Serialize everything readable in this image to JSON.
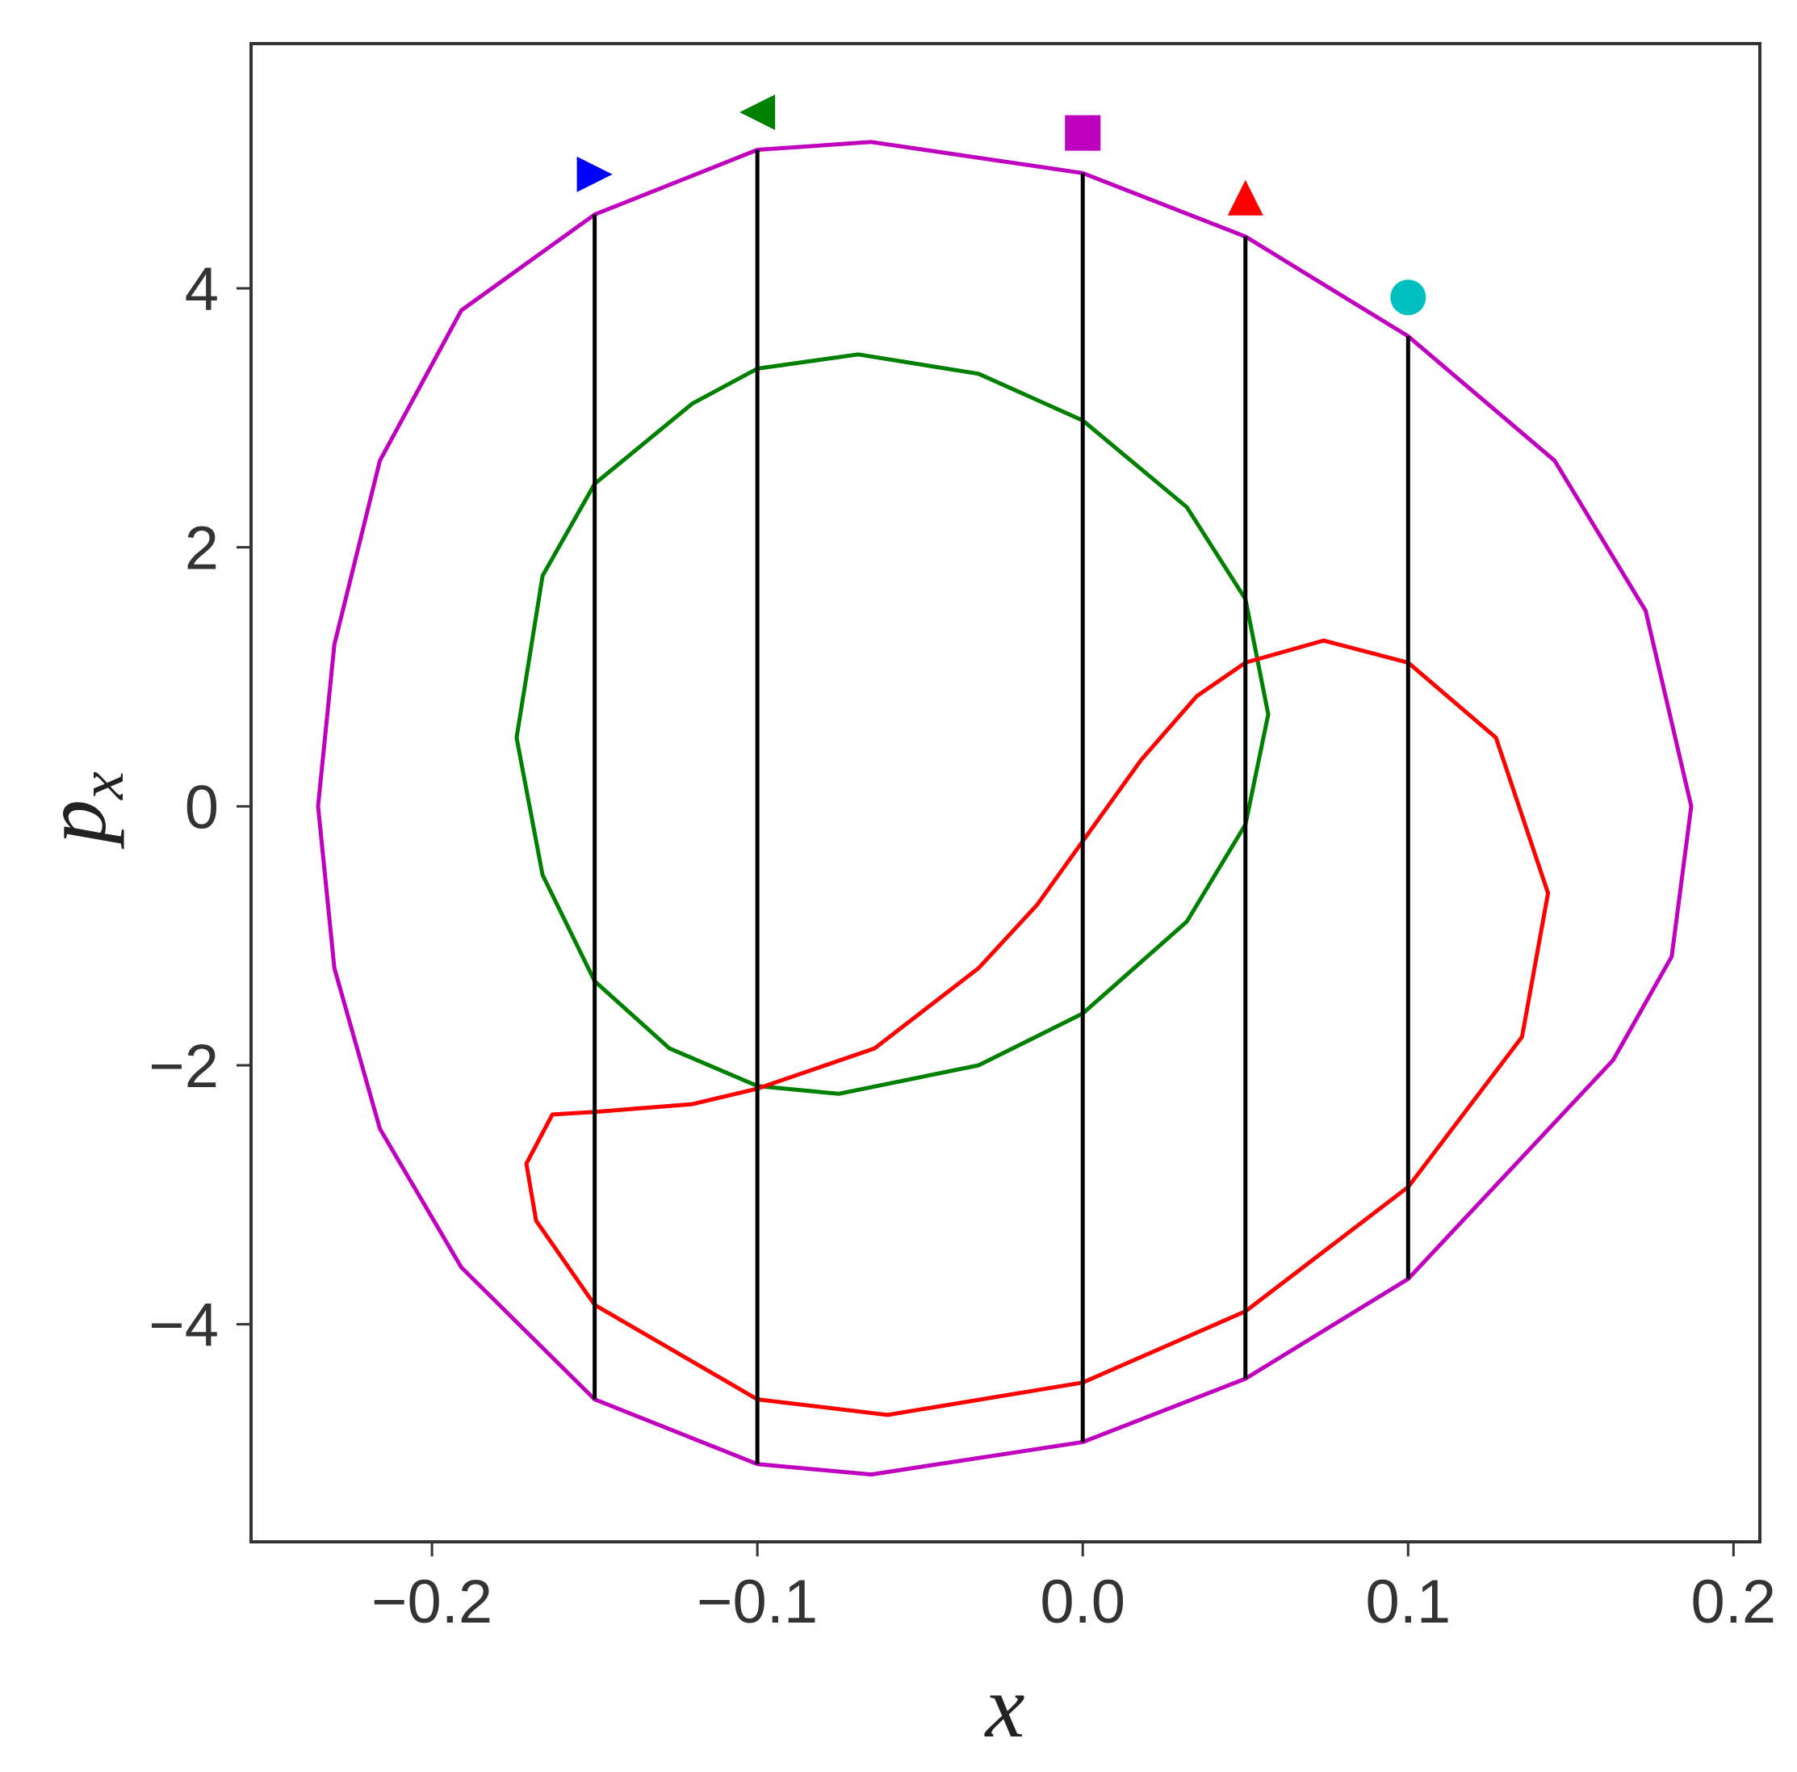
{
  "chart_data": {
    "type": "line",
    "xlabel": "x",
    "ylabel": {
      "text": "p",
      "subscript": "x"
    },
    "xlim": [
      -0.2556,
      0.2081
    ],
    "ylim": [
      -5.68,
      5.89
    ],
    "xticks": [
      {
        "value": -0.2,
        "label": "−0.2"
      },
      {
        "value": -0.1,
        "label": "−0.1"
      },
      {
        "value": 0.0,
        "label": "0.0"
      },
      0.1,
      0.2
    ],
    "yticks": [
      {
        "value": -4,
        "label": "−4"
      },
      {
        "value": -2,
        "label": "−2"
      },
      0,
      2,
      4
    ],
    "closed": true,
    "series": [
      {
        "color": "#bf00bf",
        "x": [
          -0.235,
          -0.23,
          -0.216,
          -0.191,
          -0.15,
          -0.1,
          -0.065,
          0.0,
          0.05,
          0.1,
          0.145,
          0.173,
          0.187,
          0.181,
          0.163,
          0.1,
          0.05,
          0.0,
          -0.065,
          -0.1,
          -0.15,
          -0.191,
          -0.216,
          -0.23
        ],
        "values": [
          0,
          1.25,
          2.67,
          3.83,
          4.57,
          5.07,
          5.13,
          4.89,
          4.4,
          3.63,
          2.67,
          1.51,
          0,
          -1.16,
          -1.96,
          -3.65,
          -4.42,
          -4.91,
          -5.16,
          -5.08,
          -4.58,
          -3.56,
          -2.49,
          -1.25
        ]
      },
      {
        "color": "#008000",
        "x": [
          -0.174,
          -0.166,
          -0.15,
          -0.12,
          -0.1,
          -0.069,
          -0.032,
          0.0,
          0.032,
          0.05,
          0.057,
          0.05,
          0.032,
          0.0,
          -0.032,
          -0.075,
          -0.1,
          -0.127,
          -0.15,
          -0.166
        ],
        "values": [
          0.53,
          1.78,
          2.49,
          3.11,
          3.38,
          3.49,
          3.34,
          2.98,
          2.31,
          1.6,
          0.71,
          -0.14,
          -0.89,
          -1.6,
          -2.0,
          -2.22,
          -2.16,
          -1.87,
          -1.35,
          -0.53
        ]
      },
      {
        "color": "#ff0000",
        "x": [
          0.0,
          0.018,
          0.035,
          0.05,
          0.074,
          0.1,
          0.127,
          0.143,
          0.135,
          0.1,
          0.05,
          0.0,
          -0.06,
          -0.1,
          -0.15,
          -0.168,
          -0.171,
          -0.163,
          -0.15,
          -0.12,
          -0.1,
          -0.064,
          -0.032,
          -0.014
        ],
        "values": [
          -0.27,
          0.36,
          0.85,
          1.11,
          1.28,
          1.11,
          0.53,
          -0.67,
          -1.78,
          -2.94,
          -3.9,
          -4.45,
          -4.7,
          -4.58,
          -3.85,
          -3.2,
          -2.76,
          -2.38,
          -2.36,
          -2.3,
          -2.18,
          -1.87,
          -1.25,
          -0.76
        ]
      }
    ],
    "segments": [
      {
        "x": -0.15,
        "y": [
          -4.58,
          4.57
        ]
      },
      {
        "x": -0.1,
        "y": [
          -5.08,
          5.07
        ]
      },
      {
        "x": 0.0,
        "y": [
          -4.91,
          4.89
        ]
      },
      {
        "x": 0.05,
        "y": [
          -4.42,
          4.4
        ]
      },
      {
        "x": 0.1,
        "y": [
          -3.65,
          3.63
        ]
      }
    ],
    "segment_color": "#000000",
    "markers": [
      {
        "x": -0.15,
        "y": 4.88,
        "color": "#0000ff",
        "shape": "triangle-right"
      },
      {
        "x": -0.1,
        "y": 5.36,
        "color": "#008000",
        "shape": "triangle-left"
      },
      {
        "x": 0.0,
        "y": 5.2,
        "color": "#bf00bf",
        "shape": "square"
      },
      {
        "x": 0.05,
        "y": 4.7,
        "color": "#ff0000",
        "shape": "triangle-up"
      },
      {
        "x": 0.1,
        "y": 3.93,
        "color": "#00bfbf",
        "shape": "circle"
      }
    ]
  }
}
